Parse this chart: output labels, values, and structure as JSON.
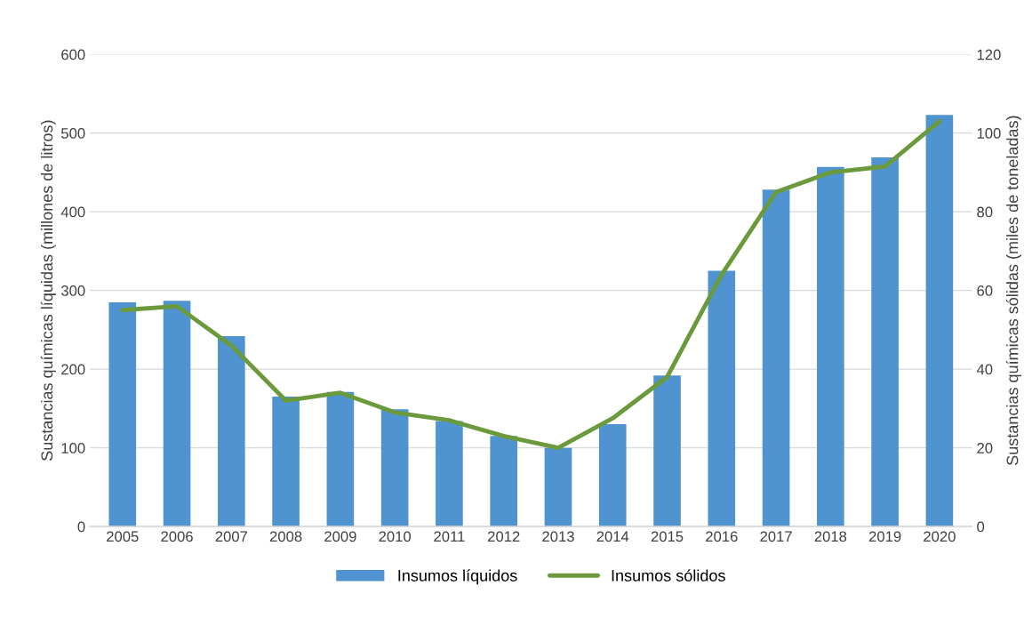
{
  "chart_data": {
    "type": "bar",
    "categories": [
      "2005",
      "2006",
      "2007",
      "2008",
      "2009",
      "2010",
      "2011",
      "2012",
      "2013",
      "2014",
      "2015",
      "2016",
      "2017",
      "2018",
      "2019",
      "2020"
    ],
    "ylabel": "Sustancias químicas líquidas (millones de litros)",
    "y2label": "Sustancias químicas sólidas (miles de toneladas)",
    "ylim": [
      0,
      600
    ],
    "yticks": [
      0,
      100,
      200,
      300,
      400,
      500,
      600
    ],
    "y2lim": [
      0,
      120
    ],
    "y2ticks": [
      0,
      20,
      40,
      60,
      80,
      100,
      120
    ],
    "grid": "y",
    "legend": "bottom",
    "series": [
      {
        "name": "Insumos líquidos",
        "color": "#4f94d0",
        "values": [
          285,
          287,
          242,
          165,
          171,
          149,
          134,
          115,
          100,
          130,
          192,
          325,
          428,
          457,
          469,
          523
        ]
      },
      {
        "name": "Insumos sólidos",
        "type": "line",
        "axis": "y2",
        "color": "#6b9a3c",
        "values": [
          55,
          56,
          46,
          32,
          34,
          29,
          27,
          23,
          20,
          27.5,
          38,
          64,
          85,
          90,
          91.5,
          103
        ]
      }
    ]
  }
}
